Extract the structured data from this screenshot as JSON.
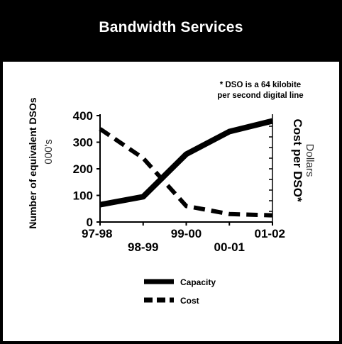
{
  "title": "Bandwidth Services",
  "footnote": {
    "line1": "* DSO is a 64 kilobite",
    "line2": "per second digital line"
  },
  "chart_data": {
    "type": "line",
    "title": "Bandwidth Services",
    "categories": [
      "97-98",
      "98-99",
      "99-00",
      "00-01",
      "01-02"
    ],
    "ylabel": "Number of equivalent DSOs",
    "ylabel_unit": "000's",
    "y2label": "Cost per DSO*",
    "y2label_unit": "Dollars",
    "ylim": [
      0,
      400
    ],
    "yticks": [
      0,
      100,
      200,
      300,
      400
    ],
    "grid": false,
    "legend_position": "bottom",
    "series": [
      {
        "name": "Capacity",
        "style": "solid",
        "values": [
          65,
          95,
          255,
          340,
          380
        ]
      },
      {
        "name": "Cost",
        "style": "dashed",
        "values": [
          350,
          240,
          60,
          30,
          25
        ]
      }
    ]
  }
}
